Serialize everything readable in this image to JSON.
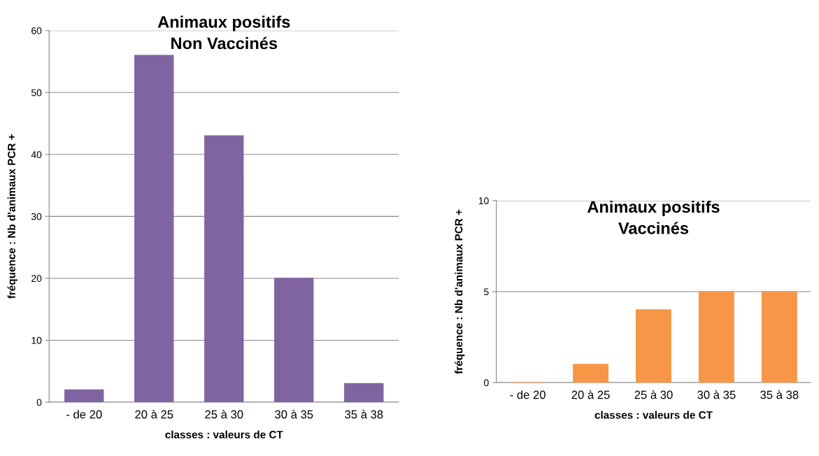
{
  "chart_data": [
    {
      "type": "bar",
      "title": "Animaux positifs\nNon Vaccinés",
      "xlabel": "classes : valeurs de CT",
      "ylabel": "fréquence : Nb d'animaux PCR +",
      "categories": [
        "- de 20",
        "20 à 25",
        "25 à 30",
        "30 à 35",
        "35 à 38"
      ],
      "series": [
        {
          "color": "#8064a2",
          "values": [
            2,
            56,
            43,
            20,
            3
          ]
        }
      ],
      "ylim": [
        0,
        60
      ],
      "yticks": [
        0,
        10,
        20,
        30,
        40,
        50,
        60
      ],
      "grid": "y"
    },
    {
      "type": "bar",
      "title": "Animaux positifs\nVaccinés",
      "xlabel": "classes : valeurs de CT",
      "ylabel": "fréquence : Nb d'animaux PCR +",
      "categories": [
        "- de 20",
        "20 à 25",
        "25 à 30",
        "30 à 35",
        "35 à 38"
      ],
      "series": [
        {
          "color": "#f79646",
          "values": [
            0,
            1,
            4,
            5,
            5
          ]
        }
      ],
      "ylim": [
        0,
        10
      ],
      "yticks": [
        0,
        5,
        10
      ],
      "grid": "y"
    }
  ]
}
